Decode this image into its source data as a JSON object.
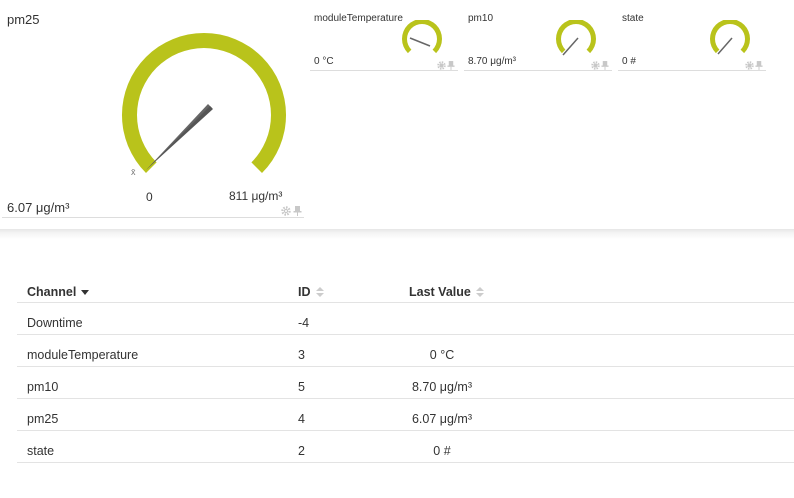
{
  "gauges": {
    "main": {
      "title": "pm25",
      "value": "6.07 μg/m³",
      "min_label": "0",
      "max_label": "811 μg/m³",
      "avg_marker": "x̄",
      "level": 0.0075,
      "color": "#b9c31b"
    },
    "small": [
      {
        "title": "moduleTemperature",
        "value": "0 °C",
        "level": 0.0
      },
      {
        "title": "pm10",
        "value": "8.70 μg/m³",
        "level": 0.03
      },
      {
        "title": "state",
        "value": "0 #",
        "level": 0.0
      }
    ],
    "icons": {
      "gear": "gear-icon",
      "pin": "pin-icon"
    }
  },
  "table": {
    "headers": {
      "channel": "Channel",
      "id": "ID",
      "last_value": "Last Value"
    },
    "rows": [
      {
        "channel": "Downtime",
        "id": "-4",
        "last_value": ""
      },
      {
        "channel": "moduleTemperature",
        "id": "3",
        "last_value": "0 °C"
      },
      {
        "channel": "pm10",
        "id": "5",
        "last_value": "8.70 μg/m³"
      },
      {
        "channel": "pm25",
        "id": "4",
        "last_value": "6.07 μg/m³"
      },
      {
        "channel": "state",
        "id": "2",
        "last_value": "0 #"
      }
    ]
  }
}
